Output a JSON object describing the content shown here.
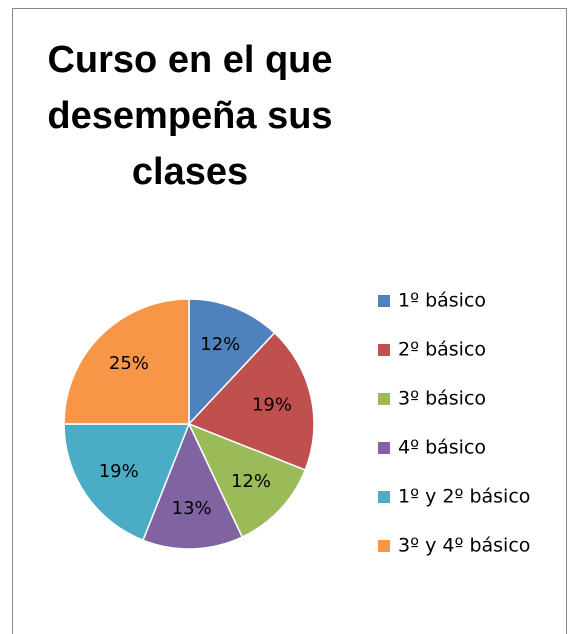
{
  "chart_data": {
    "type": "pie",
    "title": "Curso en el que desempeña sus clases",
    "categories": [
      "1º básico",
      "2º básico",
      "3º básico",
      "4º básico",
      "1º y 2º básico",
      "3º y 4º básico"
    ],
    "values": [
      12,
      19,
      12,
      13,
      19,
      25
    ],
    "value_labels": [
      "12%",
      "19%",
      "12%",
      "13%",
      "19%",
      "25%"
    ],
    "colors": [
      "#4f81bd",
      "#c0504d",
      "#9bbb59",
      "#8064a2",
      "#4bacc6",
      "#f79646"
    ],
    "legend": "right"
  }
}
